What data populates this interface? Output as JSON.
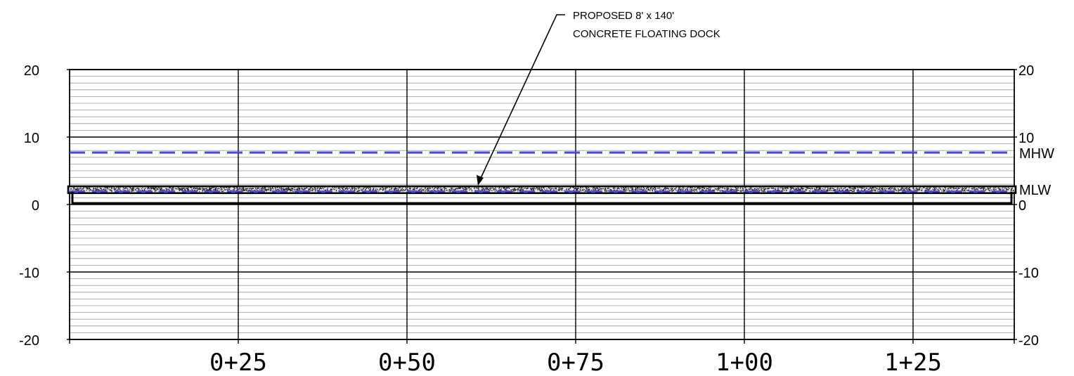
{
  "callout": {
    "line1": "PROPOSED 8' x 140'",
    "line2": "CONCRETE FLOATING DOCK"
  },
  "elevation_axis": {
    "ticks": [
      20,
      10,
      0,
      -10,
      -20
    ],
    "labels_left": [
      "20",
      "10",
      "0",
      "-10",
      "-20"
    ],
    "labels_right": [
      "20",
      "10",
      "0",
      "-10",
      "-20"
    ],
    "minor_interval": 1
  },
  "station_axis": {
    "range_ft": [
      0,
      140
    ],
    "major_interval_ft": 25,
    "labels": [
      "0+25",
      "0+50",
      "0+75",
      "1+00",
      "1+25"
    ]
  },
  "tidal_datums": {
    "mhw": {
      "label": "MHW",
      "elevation": 7.7,
      "color": "#4a4ae0"
    },
    "mlw": {
      "label": "MLW",
      "elevation": 1.9,
      "color": "#4a4ae0"
    }
  },
  "dock": {
    "width_ft": 8,
    "length_ft": 140,
    "top_elevation": 2.7,
    "deck_bottom_elevation": 1.9,
    "float_bottom_elevation": 0.2,
    "material": "concrete"
  }
}
